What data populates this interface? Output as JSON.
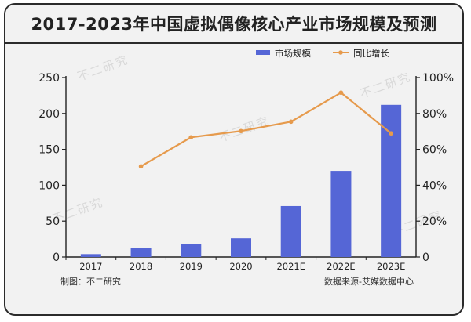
{
  "title": "2017-2023年中国虚拟偶像核心产业市场规模及预测",
  "footer": {
    "left": "制图：不二研究",
    "right": "数据来源-艾媒数据中心"
  },
  "watermark": "不二研究",
  "chart_data": {
    "type": "bar",
    "categories": [
      "2017",
      "2018",
      "2019",
      "2020",
      "2021E",
      "2022E",
      "2023E"
    ],
    "series": [
      {
        "name": "市场规模",
        "type": "bar",
        "axis": "left",
        "color": "#5566d6",
        "values": [
          4,
          12,
          18,
          26,
          71,
          120,
          212
        ]
      },
      {
        "name": "同比增长",
        "type": "line",
        "axis": "right",
        "color": "#e69a4c",
        "values": [
          null,
          50.5,
          66.7,
          70.2,
          75.4,
          91.6,
          68.9
        ]
      }
    ],
    "y_left": {
      "ylim": [
        0,
        250
      ],
      "ticks": [
        "0",
        "50",
        "100",
        "150",
        "200",
        "250"
      ]
    },
    "y_right": {
      "ylim": [
        0,
        100
      ],
      "ticks": [
        "0",
        "20%",
        "40%",
        "60%",
        "80%",
        "100%"
      ]
    },
    "legend_placement": "top-right",
    "grid": false
  }
}
